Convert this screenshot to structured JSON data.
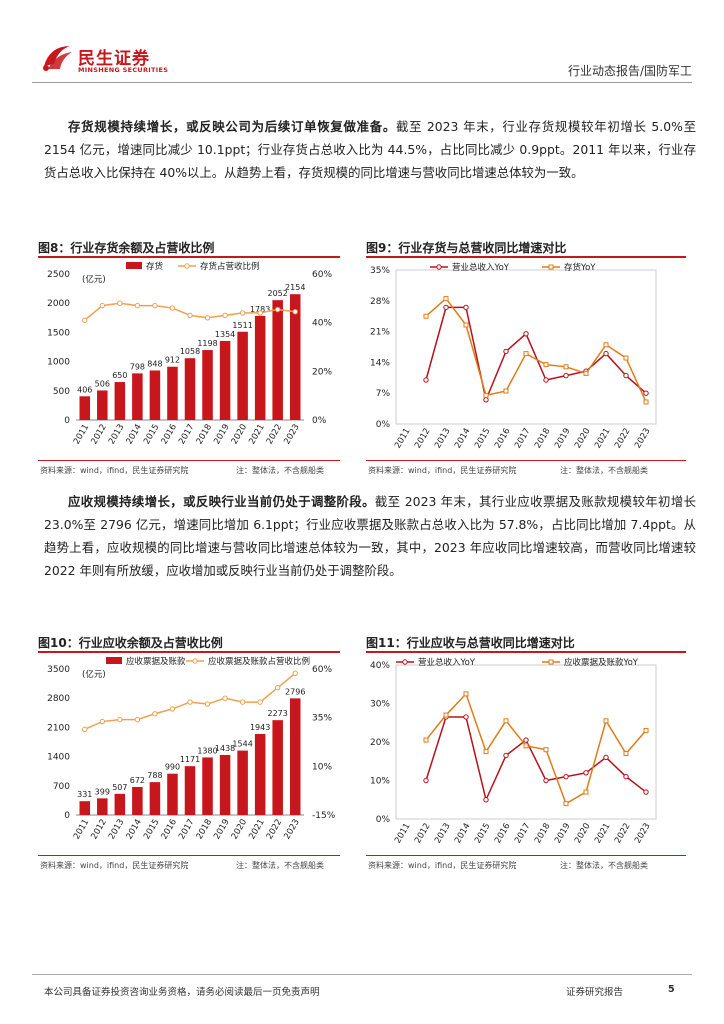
{
  "header": {
    "logo_cn": "民生证券",
    "logo_en": "MINSHENG SECURITIES",
    "category": "行业动态报告/国防军工"
  },
  "para1": {
    "bold": "存货规模持续增长，或反映公司为后续订单恢复做准备。",
    "text": "截至 2023 年末，行业存货规模较年初增长 5.0%至 2154 亿元，增速同比减少 10.1ppt；行业存货占总收入比为 44.5%，占比同比减少 0.9ppt。2011 年以来，行业存货占总收入比保持在 40%以上。从趋势上看，存货规模的同比增速与营收同比增速总体较为一致。"
  },
  "para2": {
    "bold": "应收规模持续增长，或反映行业当前仍处于调整阶段。",
    "text": "截至 2023 年末，其行业应收票据及账款规模较年初增长 23.0%至 2796 亿元，增速同比增加 6.1ppt；行业应收票据及账款占总收入比为 57.8%，占比同比增加 7.4ppt。从趋势上看，应收规模的同比增速与营收同比增速总体较为一致，其中，2023 年应收同比增速较高，而营收同比增速较 2022 年则有所放缓，应收增加或反映行业当前仍处于调整阶段。"
  },
  "fig8": {
    "title": "图8：行业存货余额及占营收比例",
    "source": "资料来源：wind，ifind，民生证券研究院",
    "note": "注：整体法，不含舰船类"
  },
  "fig9": {
    "title": "图9：行业存货与总营收同比增速对比",
    "source": "资料来源：wind，ifind，民生证券研究院",
    "note": "注：整体法，不含舰船类"
  },
  "fig10": {
    "title": "图10：行业应收余额及占营收比例",
    "source": "资料来源：wind，ifind，民生证券研究院",
    "note": "注：整体法，不含舰船类"
  },
  "fig11": {
    "title": "图11：行业应收与总营收同比增速对比",
    "source": "资料来源：wind，ifind，民生证券研究院",
    "note": "注：整体法，不含舰船类"
  },
  "footer": {
    "left": "本公司具备证券投资咨询业务资格，请务必阅读最后一页免责声明",
    "right": "证券研究报告",
    "page": "5"
  },
  "colors": {
    "bar": "#c8161d",
    "line_orange": "#f0a050",
    "line_red": "#b5121b",
    "line_orange2": "#e07b1a"
  },
  "chart_data": [
    {
      "id": "fig8",
      "type": "bar+line",
      "categories": [
        "2011",
        "2012",
        "2013",
        "2014",
        "2015",
        "2016",
        "2017",
        "2018",
        "2019",
        "2020",
        "2021",
        "2022",
        "2023"
      ],
      "unit_label": "(亿元)",
      "series": [
        {
          "name": "存货",
          "type": "bar",
          "axis": "left",
          "values": [
            406,
            506,
            650,
            798,
            848,
            912,
            1058,
            1198,
            1354,
            1511,
            1783,
            2052,
            2154
          ]
        },
        {
          "name": "存货占营收比例",
          "type": "line",
          "axis": "right",
          "values": [
            41,
            47,
            48,
            47,
            47,
            46,
            43,
            42,
            43,
            44,
            44,
            45.4,
            44.5
          ]
        }
      ],
      "ylim_left": [
        0,
        2500
      ],
      "yticks_left": [
        "0",
        "500",
        "1000",
        "1500",
        "2000",
        "2500"
      ],
      "ylim_right": [
        0,
        60
      ],
      "yticks_right": [
        "0%",
        "20%",
        "40%",
        "60%"
      ]
    },
    {
      "id": "fig9",
      "type": "line",
      "categories": [
        "2011",
        "2012",
        "2013",
        "2014",
        "2015",
        "2016",
        "2017",
        "2018",
        "2019",
        "2020",
        "2021",
        "2022",
        "2023"
      ],
      "series": [
        {
          "name": "营业总收入YoY",
          "values": [
            null,
            10,
            26.5,
            26.5,
            5.5,
            16.5,
            20.5,
            10,
            11,
            12,
            16,
            11,
            7
          ]
        },
        {
          "name": "存货YoY",
          "values": [
            null,
            24.5,
            28.5,
            22.5,
            6.5,
            7.5,
            16,
            13.5,
            13,
            11.5,
            18,
            15,
            5
          ]
        }
      ],
      "ylim": [
        0,
        35
      ],
      "yticks": [
        "0%",
        "7%",
        "14%",
        "21%",
        "28%",
        "35%"
      ]
    },
    {
      "id": "fig10",
      "type": "bar+line",
      "categories": [
        "2011",
        "2012",
        "2013",
        "2014",
        "2015",
        "2016",
        "2017",
        "2018",
        "2019",
        "2020",
        "2021",
        "2022",
        "2023"
      ],
      "unit_label": "(亿元)",
      "series": [
        {
          "name": "应收票据及账款",
          "type": "bar",
          "axis": "left",
          "values": [
            331,
            399,
            507,
            672,
            788,
            990,
            1171,
            1380,
            1438,
            1544,
            1943,
            2273,
            2796
          ]
        },
        {
          "name": "应收票据及账款占营收比例",
          "type": "line",
          "axis": "right",
          "values": [
            29,
            33,
            34,
            34,
            37,
            39.5,
            43,
            42,
            45,
            43,
            43,
            50.4,
            57.8
          ]
        }
      ],
      "ylim_left": [
        0,
        3500
      ],
      "yticks_left": [
        "0",
        "700",
        "1400",
        "2100",
        "2800",
        "3500"
      ],
      "ylim_right": [
        -15,
        60
      ],
      "yticks_right": [
        "-15%",
        "10%",
        "35%",
        "60%"
      ]
    },
    {
      "id": "fig11",
      "type": "line",
      "categories": [
        "2011",
        "2012",
        "2013",
        "2014",
        "2015",
        "2016",
        "2017",
        "2018",
        "2019",
        "2020",
        "2021",
        "2022",
        "2023"
      ],
      "series": [
        {
          "name": "营业总收入YoY",
          "values": [
            null,
            10,
            26.5,
            26.5,
            5,
            16.5,
            20.5,
            10,
            11,
            12,
            16,
            11,
            7
          ]
        },
        {
          "name": "应收票据及账款YoY",
          "values": [
            null,
            20.5,
            27,
            32.5,
            17.5,
            25.5,
            19,
            18,
            4,
            7,
            25.5,
            17,
            23
          ]
        }
      ],
      "ylim": [
        0,
        40
      ],
      "yticks": [
        "0%",
        "10%",
        "20%",
        "30%",
        "40%"
      ]
    }
  ]
}
